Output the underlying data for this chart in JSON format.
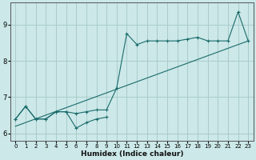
{
  "xlabel": "Humidex (Indice chaleur)",
  "bg_color": "#cce8e8",
  "grid_color": "#aacccc",
  "line_color": "#1a6b6b",
  "xlim": [
    -0.5,
    23.5
  ],
  "ylim": [
    5.8,
    9.6
  ],
  "yticks": [
    6,
    7,
    8,
    9
  ],
  "xticks": [
    0,
    1,
    2,
    3,
    4,
    5,
    6,
    7,
    8,
    9,
    10,
    11,
    12,
    13,
    14,
    15,
    16,
    17,
    18,
    19,
    20,
    21,
    22,
    23
  ],
  "series1_x": [
    0,
    1,
    2,
    3,
    4,
    5,
    6,
    7,
    8,
    9,
    10,
    11,
    12,
    13,
    14,
    15,
    16,
    17,
    18,
    19,
    20,
    21,
    22,
    23
  ],
  "series1_y": [
    6.4,
    6.75,
    6.4,
    6.4,
    6.6,
    6.6,
    6.55,
    6.6,
    6.65,
    6.65,
    7.25,
    8.75,
    8.45,
    8.55,
    8.55,
    8.55,
    8.55,
    8.6,
    8.65,
    8.55,
    8.55,
    8.55,
    9.35,
    8.55
  ],
  "series2_x": [
    0,
    1,
    2,
    3,
    4,
    5,
    6,
    7,
    8,
    9
  ],
  "series2_y": [
    6.4,
    6.75,
    6.4,
    6.4,
    6.6,
    6.6,
    6.15,
    6.3,
    6.4,
    6.45
  ],
  "trend_x": [
    0,
    23
  ],
  "trend_y": [
    6.2,
    8.55
  ]
}
